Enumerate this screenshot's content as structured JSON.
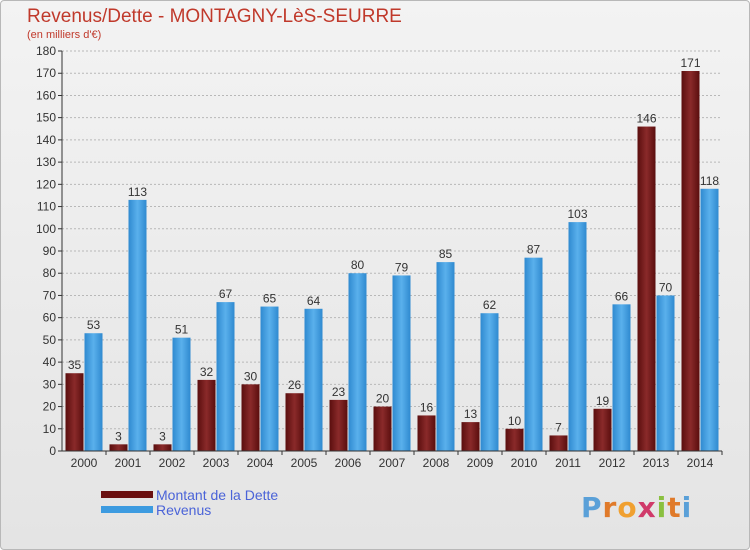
{
  "header": {
    "title": "Revenus/Dette - MONTAGNY-LèS-SEURRE",
    "subtitle": "(en milliers d'€)"
  },
  "colors": {
    "dette": "#7a1a1a",
    "revenus": "#3d9be0",
    "title": "#c0392b",
    "legend_text": "#4a63d8"
  },
  "legend": {
    "items": [
      {
        "label": "Montant de la Dette",
        "color": "#6b1010"
      },
      {
        "label": "Revenus",
        "color": "#3d9be0"
      }
    ]
  },
  "logo": {
    "letters": [
      "P",
      "r",
      "o",
      "x",
      "i",
      "t",
      "i"
    ],
    "colors": [
      "#5aa0d8",
      "#e07a2a",
      "#f0a030",
      "#d03a6a",
      "#8ac040",
      "#e07a2a",
      "#5aa0d8"
    ]
  },
  "chart_data": {
    "type": "bar",
    "categories": [
      "2000",
      "2001",
      "2002",
      "2003",
      "2004",
      "2005",
      "2006",
      "2007",
      "2008",
      "2009",
      "2010",
      "2011",
      "2012",
      "2013",
      "2014"
    ],
    "series": [
      {
        "name": "Montant de la Dette",
        "values": [
          35,
          3,
          3,
          32,
          30,
          26,
          23,
          20,
          16,
          13,
          10,
          7,
          19,
          146,
          171
        ]
      },
      {
        "name": "Revenus",
        "values": [
          53,
          113,
          51,
          67,
          65,
          64,
          80,
          79,
          85,
          62,
          87,
          103,
          66,
          70,
          118
        ]
      }
    ],
    "ylim": [
      0,
      180
    ],
    "yticks": [
      0,
      10,
      20,
      30,
      40,
      50,
      60,
      70,
      80,
      90,
      100,
      110,
      120,
      130,
      140,
      150,
      160,
      170,
      180
    ],
    "grid": true
  }
}
